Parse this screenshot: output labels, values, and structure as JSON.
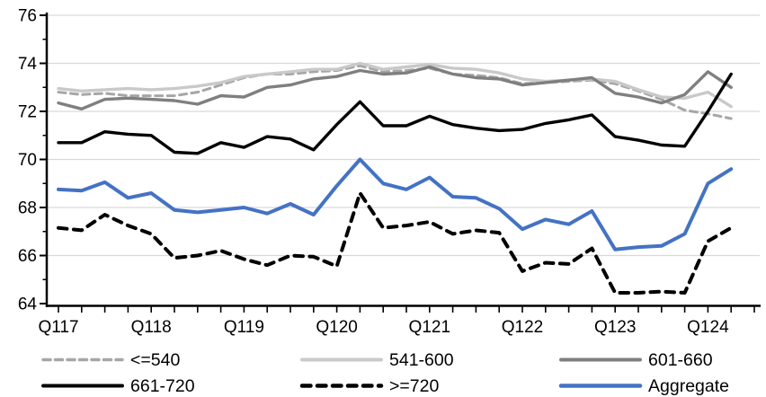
{
  "chart_data": {
    "type": "line",
    "title": "",
    "xlabel": "",
    "ylabel": "",
    "ylim": [
      64,
      76
    ],
    "ytick_step": 2,
    "ytick_labels": [
      "64",
      "66",
      "68",
      "70",
      "72",
      "74",
      "76"
    ],
    "grid": "horizontal",
    "gridline_color": "#d9d9d9",
    "axis_color": "#000000",
    "n_points": 30,
    "categories": [
      "2017Q1",
      "2017Q2",
      "2017Q3",
      "2017Q4",
      "2018Q1",
      "2018Q2",
      "2018Q3",
      "2018Q4",
      "2019Q1",
      "2019Q2",
      "2019Q3",
      "2019Q4",
      "2020Q1",
      "2020Q2",
      "2020Q3",
      "2020Q4",
      "2021Q1",
      "2021Q2",
      "2021Q3",
      "2021Q4",
      "2022Q1",
      "2022Q2",
      "2022Q3",
      "2022Q4",
      "2023Q1",
      "2023Q2",
      "2023Q3",
      "2023Q4",
      "2024Q1",
      "2024Q2"
    ],
    "x_axis_labels": [
      {
        "label": "Q117",
        "index": 0
      },
      {
        "label": "Q118",
        "index": 4
      },
      {
        "label": "Q119",
        "index": 8
      },
      {
        "label": "Q120",
        "index": 12
      },
      {
        "label": "Q121",
        "index": 16
      },
      {
        "label": "Q122",
        "index": 20
      },
      {
        "label": "Q123",
        "index": 24
      },
      {
        "label": "Q124",
        "index": 28
      }
    ],
    "series": [
      {
        "name": "<=540",
        "color": "#a6a6a6",
        "style": "dashed",
        "width": 3,
        "values": [
          72.8,
          72.7,
          72.75,
          72.65,
          72.65,
          72.65,
          72.8,
          73.1,
          73.4,
          73.55,
          73.55,
          73.65,
          73.7,
          73.9,
          73.65,
          73.7,
          73.8,
          73.55,
          73.5,
          73.4,
          73.15,
          73.2,
          73.25,
          73.3,
          73.15,
          72.85,
          72.5,
          72.05,
          71.9,
          71.7
        ]
      },
      {
        "name": "541-600",
        "color": "#c9c9c9",
        "style": "solid",
        "width": 3.4,
        "values": [
          72.95,
          72.85,
          72.9,
          72.95,
          72.9,
          72.95,
          73.05,
          73.2,
          73.45,
          73.55,
          73.65,
          73.75,
          73.75,
          74.0,
          73.75,
          73.85,
          73.95,
          73.8,
          73.75,
          73.6,
          73.35,
          73.25,
          73.3,
          73.35,
          73.25,
          72.9,
          72.6,
          72.55,
          72.8,
          72.2
        ]
      },
      {
        "name": "601-660",
        "color": "#7f7f7f",
        "style": "solid",
        "width": 3.4,
        "values": [
          72.35,
          72.1,
          72.5,
          72.55,
          72.5,
          72.45,
          72.3,
          72.65,
          72.6,
          73.0,
          73.1,
          73.35,
          73.45,
          73.7,
          73.55,
          73.6,
          73.85,
          73.55,
          73.4,
          73.35,
          73.1,
          73.2,
          73.3,
          73.4,
          72.75,
          72.6,
          72.35,
          72.7,
          73.65,
          73.0
        ]
      },
      {
        "name": "661-720",
        "color": "#000000",
        "style": "solid",
        "width": 3.4,
        "values": [
          70.7,
          70.7,
          71.15,
          71.05,
          71.0,
          70.3,
          70.25,
          70.7,
          70.5,
          70.95,
          70.85,
          70.4,
          71.45,
          72.4,
          71.4,
          71.4,
          71.8,
          71.45,
          71.3,
          71.2,
          71.25,
          71.5,
          71.65,
          71.85,
          70.95,
          70.8,
          70.6,
          70.55,
          72.0,
          73.55
        ]
      },
      {
        "name": ">=720",
        "color": "#000000",
        "style": "dashed-bold",
        "width": 4,
        "values": [
          67.15,
          67.05,
          67.7,
          67.25,
          66.9,
          65.9,
          66.0,
          66.2,
          65.85,
          65.6,
          66.0,
          65.95,
          65.55,
          68.6,
          67.15,
          67.25,
          67.4,
          66.9,
          67.05,
          66.95,
          65.35,
          65.7,
          65.65,
          66.3,
          64.45,
          64.45,
          64.5,
          64.45,
          66.6,
          67.15
        ]
      },
      {
        "name": "Aggregate",
        "color": "#4472c4",
        "style": "solid",
        "width": 4,
        "values": [
          68.75,
          68.7,
          69.05,
          68.4,
          68.6,
          67.9,
          67.8,
          67.9,
          68.0,
          67.75,
          68.15,
          67.7,
          68.9,
          70.0,
          69.0,
          68.75,
          69.25,
          68.45,
          68.4,
          67.95,
          67.1,
          67.5,
          67.3,
          67.85,
          66.25,
          66.35,
          66.4,
          66.9,
          69.0,
          69.6
        ]
      }
    ],
    "legend": {
      "position": "bottom",
      "rows": [
        [
          "<=540",
          "541-600",
          "601-660"
        ],
        [
          "661-720",
          ">=720",
          "Aggregate"
        ]
      ]
    }
  }
}
